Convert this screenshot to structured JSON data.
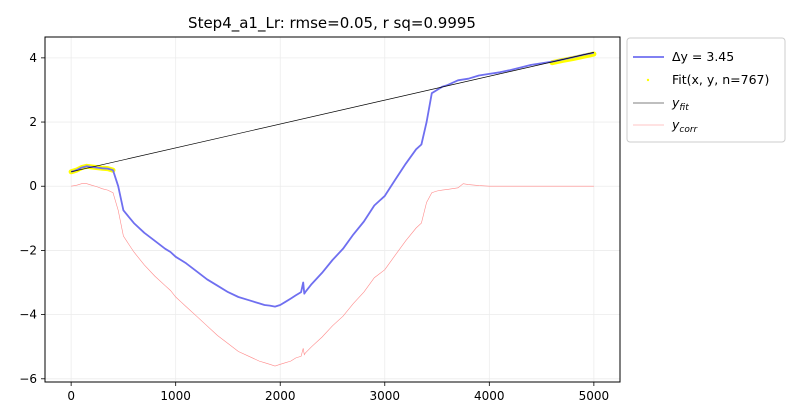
{
  "chart_data": {
    "type": "line",
    "title": "Step4_a1_Lr: rmse=0.05, r sq=0.9995",
    "xlabel": "",
    "ylabel": "",
    "xlim": [
      -250,
      5250
    ],
    "ylim": [
      -6.1,
      4.65
    ],
    "x_ticks": [
      0,
      1000,
      2000,
      3000,
      4000,
      5000
    ],
    "x_tick_labels": [
      "0",
      "1000",
      "2000",
      "3000",
      "4000",
      "5000"
    ],
    "y_ticks": [
      -6,
      -4,
      -2,
      0,
      2,
      4
    ],
    "y_tick_labels": [
      "−6",
      "−4",
      "−2",
      "0",
      "2",
      "4"
    ],
    "grid": true,
    "legend_position": "outside-top-right",
    "series": [
      {
        "name": "Δy = 3.45",
        "key": "data",
        "color": "#6f6ff0",
        "x": [
          0,
          50,
          100,
          150,
          200,
          250,
          300,
          350,
          400,
          450,
          500,
          550,
          600,
          700,
          800,
          900,
          950,
          1000,
          1050,
          1100,
          1200,
          1300,
          1400,
          1500,
          1600,
          1700,
          1800,
          1850,
          1900,
          1950,
          2000,
          2050,
          2100,
          2150,
          2200,
          2220,
          2230,
          2240,
          2300,
          2400,
          2500,
          2600,
          2700,
          2800,
          2900,
          3000,
          3100,
          3200,
          3300,
          3350,
          3400,
          3450,
          3500,
          3550,
          3600,
          3700,
          3800,
          3900,
          4000,
          4100,
          4200,
          4300,
          4400,
          4500,
          4600,
          4700,
          4800,
          4900,
          5000
        ],
        "y": [
          0.45,
          0.5,
          0.58,
          0.62,
          0.6,
          0.58,
          0.56,
          0.55,
          0.5,
          0.0,
          -0.75,
          -0.95,
          -1.15,
          -1.45,
          -1.7,
          -1.95,
          -2.05,
          -2.2,
          -2.3,
          -2.4,
          -2.65,
          -2.9,
          -3.1,
          -3.3,
          -3.45,
          -3.55,
          -3.65,
          -3.7,
          -3.72,
          -3.75,
          -3.7,
          -3.6,
          -3.5,
          -3.4,
          -3.3,
          -3.0,
          -3.35,
          -3.3,
          -3.05,
          -2.7,
          -2.3,
          -1.95,
          -1.5,
          -1.1,
          -0.6,
          -0.3,
          0.2,
          0.7,
          1.15,
          1.3,
          2.0,
          2.9,
          3.0,
          3.1,
          3.15,
          3.3,
          3.35,
          3.45,
          3.5,
          3.55,
          3.62,
          3.7,
          3.78,
          3.83,
          3.88,
          3.95,
          4.02,
          4.1,
          4.16
        ]
      },
      {
        "name": "Fit(x, y, n=767)",
        "key": "fit_points",
        "color": "#ffff00",
        "segments": [
          {
            "x": [
              0,
              50,
              100,
              150,
              200,
              250,
              300,
              350,
              400
            ],
            "y": [
              0.45,
              0.5,
              0.58,
              0.62,
              0.6,
              0.58,
              0.56,
              0.55,
              0.5
            ]
          },
          {
            "x": [
              4600,
              4700,
              4800,
              4900,
              5000
            ],
            "y": [
              3.85,
              3.92,
              3.98,
              4.05,
              4.12
            ]
          }
        ]
      },
      {
        "name": "y_fit",
        "key": "fit_line",
        "color": "#000000",
        "x": [
          0,
          5000
        ],
        "y": [
          0.45,
          4.17
        ]
      },
      {
        "name": "y_corr",
        "key": "corrected",
        "color": "#ff8a8a",
        "x": [
          0,
          50,
          100,
          150,
          200,
          250,
          300,
          350,
          400,
          450,
          500,
          550,
          600,
          700,
          800,
          900,
          950,
          1000,
          1050,
          1100,
          1200,
          1300,
          1400,
          1500,
          1600,
          1700,
          1800,
          1850,
          1900,
          1950,
          2000,
          2050,
          2100,
          2150,
          2200,
          2220,
          2230,
          2240,
          2300,
          2400,
          2500,
          2600,
          2700,
          2800,
          2900,
          3000,
          3100,
          3200,
          3300,
          3350,
          3400,
          3450,
          3500,
          3550,
          3600,
          3700,
          3750,
          3800,
          3900,
          4000,
          4500,
          5000
        ],
        "y": [
          0.0,
          0.03,
          0.08,
          0.08,
          0.03,
          -0.02,
          -0.08,
          -0.12,
          -0.2,
          -0.75,
          -1.55,
          -1.8,
          -2.05,
          -2.45,
          -2.8,
          -3.1,
          -3.25,
          -3.45,
          -3.6,
          -3.75,
          -4.05,
          -4.35,
          -4.65,
          -4.9,
          -5.15,
          -5.3,
          -5.45,
          -5.5,
          -5.55,
          -5.6,
          -5.55,
          -5.5,
          -5.45,
          -5.35,
          -5.3,
          -5.05,
          -5.25,
          -5.2,
          -5.0,
          -4.7,
          -4.35,
          -4.05,
          -3.65,
          -3.3,
          -2.85,
          -2.6,
          -2.15,
          -1.7,
          -1.3,
          -1.15,
          -0.5,
          -0.2,
          -0.15,
          -0.12,
          -0.1,
          -0.05,
          0.08,
          0.05,
          0.02,
          0.0,
          0.0,
          0.0
        ]
      }
    ],
    "legend": {
      "data_label": "Δy = 3.45",
      "fit_points_label": "Fit(x, y, n=767)",
      "fit_line_base": "y",
      "fit_line_sub": "fit",
      "corr_base": "y",
      "corr_sub": "corr"
    }
  }
}
